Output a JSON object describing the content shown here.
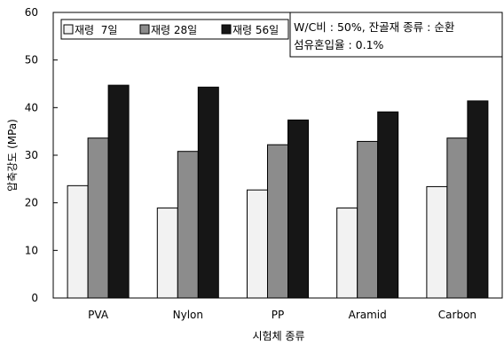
{
  "chart_data": {
    "type": "bar",
    "categories": [
      "PVA",
      "Nylon",
      "PP",
      "Aramid",
      "Carbon"
    ],
    "series": [
      {
        "name": "재령  7일",
        "values": [
          23.6,
          18.9,
          22.7,
          18.9,
          23.4
        ],
        "color": "#f2f2f2"
      },
      {
        "name": "재령 28일",
        "values": [
          33.6,
          30.8,
          32.2,
          32.9,
          33.6
        ],
        "color": "#8c8c8c"
      },
      {
        "name": "재령 56일",
        "values": [
          44.7,
          44.3,
          37.4,
          39.1,
          41.4
        ],
        "color": "#161616"
      }
    ],
    "title": "",
    "xlabel": "시험체 종류",
    "ylabel": "압축강도 (MPa)",
    "ylim": [
      0,
      60
    ],
    "yticks": [
      0,
      10,
      20,
      30,
      40,
      50,
      60
    ],
    "grid": false,
    "legend_position": "top-left",
    "annotation": [
      "W/C비 : 50%, 잔골재 종류 : 순환",
      "섬유혼입율 : 0.1%"
    ]
  }
}
